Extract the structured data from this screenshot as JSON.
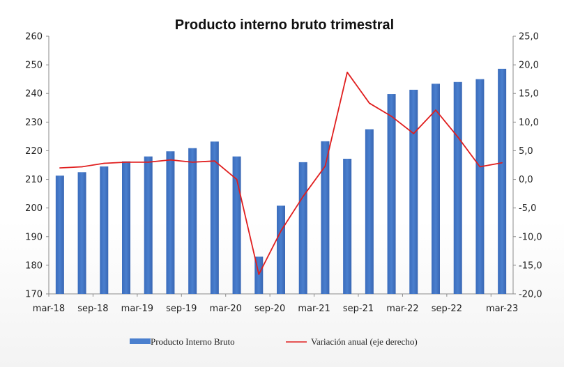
{
  "chart_data": {
    "type": "bar",
    "title": "Producto interno bruto trimestral",
    "categories": [
      "mar-18",
      "jun-18",
      "sep-18",
      "dic-18",
      "mar-19",
      "jun-19",
      "sep-19",
      "dic-19",
      "mar-20",
      "jun-20",
      "sep-20",
      "dic-20",
      "mar-21",
      "jun-21",
      "sep-21",
      "dic-21",
      "mar-22",
      "jun-22",
      "sep-22",
      "dic-22",
      "mar-23"
    ],
    "x_tick_labels": [
      "mar-18",
      "sep-18",
      "mar-19",
      "sep-19",
      "mar-20",
      "sep-20",
      "mar-21",
      "sep-21",
      "mar-22",
      "sep-22",
      "mar-23"
    ],
    "series": [
      {
        "name": "Producto Interno Bruto",
        "type": "bar",
        "axis": "left",
        "color": "#4a7fce",
        "values": [
          211.3,
          212.5,
          214.5,
          216.3,
          218.0,
          219.8,
          220.9,
          223.2,
          218.0,
          183.0,
          200.8,
          216.0,
          223.3,
          217.2,
          227.5,
          239.8,
          241.3,
          243.4,
          244.0,
          245.0,
          248.6
        ]
      },
      {
        "name": "Variación anual (eje derecho)",
        "type": "line",
        "axis": "right",
        "color": "#e01e1e",
        "values": [
          2.0,
          2.2,
          2.8,
          3.0,
          3.0,
          3.4,
          3.0,
          3.2,
          0.0,
          -16.6,
          -9.0,
          -3.0,
          2.3,
          18.7,
          13.3,
          11.0,
          8.0,
          12.1,
          7.4,
          2.2,
          2.9
        ]
      }
    ],
    "y_left": {
      "ticks": [
        "260",
        "250",
        "240",
        "230",
        "220",
        "210",
        "200",
        "190",
        "180",
        "170"
      ],
      "min": 170,
      "max": 260
    },
    "y_right": {
      "ticks": [
        "25,0",
        "20,0",
        "15,0",
        "10,0",
        "5,0",
        "0,0",
        "-5,0",
        "-10,0",
        "-15,0",
        "-20,0"
      ],
      "min": -20,
      "max": 25
    },
    "grid": false,
    "legend_position": "bottom"
  }
}
